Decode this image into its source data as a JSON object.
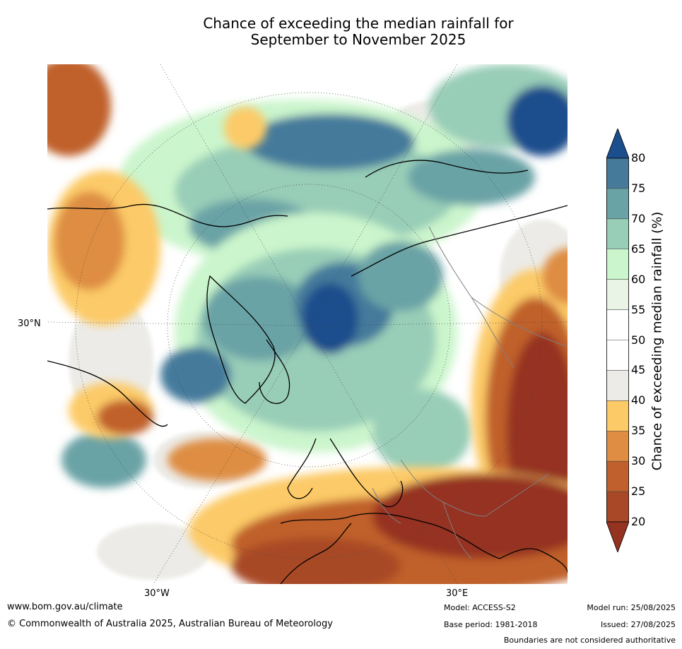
{
  "title": {
    "line1": "Chance of exceeding the median rainfall for",
    "line2": "September to November 2025"
  },
  "map": {
    "projection": "north-polar-stereographic",
    "graticule_labels": {
      "lat_30n": "30°N",
      "lon_30w": "30°W",
      "lon_30e": "30°E"
    }
  },
  "legend": {
    "label": "Chance of exceeding median rainfall (%)",
    "ticks": [
      "80",
      "75",
      "70",
      "65",
      "60",
      "55",
      "50",
      "45",
      "40",
      "35",
      "30",
      "25",
      "20"
    ],
    "bins": [
      {
        "range": ">80",
        "color": "#1a4e8c"
      },
      {
        "range": "75-80",
        "color": "#457a9b"
      },
      {
        "range": "70-75",
        "color": "#6aa3a6"
      },
      {
        "range": "65-70",
        "color": "#98cdb7"
      },
      {
        "range": "60-65",
        "color": "#cbf5cc"
      },
      {
        "range": "55-60",
        "color": "#e9f4e6"
      },
      {
        "range": "50-55",
        "color": "#ffffff"
      },
      {
        "range": "45-50",
        "color": "#ffffff"
      },
      {
        "range": "40-45",
        "color": "#ecebe7"
      },
      {
        "range": "35-40",
        "color": "#fcca67"
      },
      {
        "range": "30-35",
        "color": "#de8d42"
      },
      {
        "range": "25-30",
        "color": "#c0602c"
      },
      {
        "range": "20-25",
        "color": "#a84826"
      },
      {
        "range": "<20",
        "color": "#953321"
      }
    ]
  },
  "footer": {
    "site": "www.bom.gov.au/climate",
    "copyright": "© Commonwealth of Australia 2025, Australian Bureau of Meteorology",
    "model": "Model: ACCESS-S2",
    "base_period": "Base period: 1981-2018",
    "model_run": "Model run: 25/08/2025",
    "issued": "Issued: 27/08/2025",
    "disclaimer": "Boundaries are not considered authoritative"
  }
}
